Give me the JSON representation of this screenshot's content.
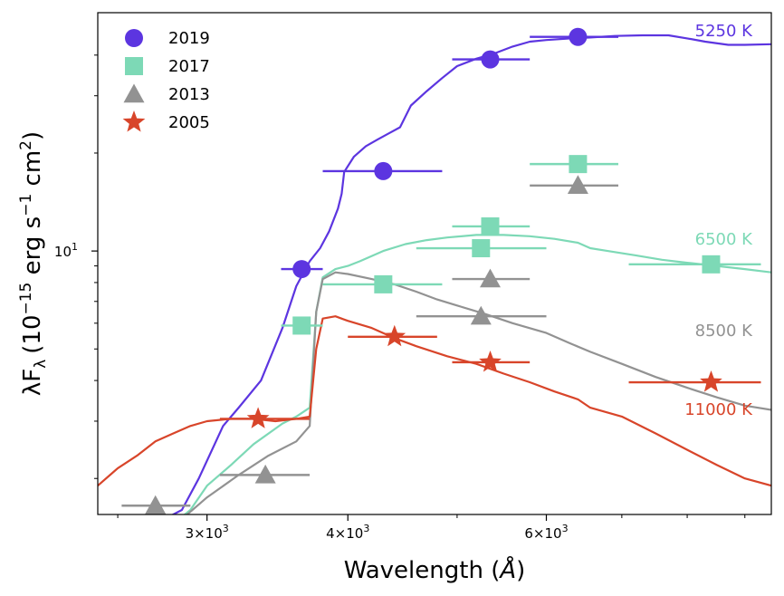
{
  "chart_data": {
    "type": "scatter",
    "xlabel_text": "Wavelength (",
    "xlabel_unit": "Å",
    "xlabel_close": ")",
    "ylabel_main": "λF",
    "ylabel_sub": "λ",
    "ylabel_units": "(10",
    "ylabel_exp1": "−15",
    "ylabel_mid": " erg s",
    "ylabel_exp2": "−1",
    "ylabel_end": " cm",
    "ylabel_exp3": "2",
    "ylabel_close": ")",
    "x_scale": "log",
    "y_scale": "log",
    "xlim": [
      2400,
      9500
    ],
    "ylim": [
      1.55,
      54
    ],
    "x_ticks": [
      {
        "value": 3000,
        "label": "3×10",
        "exp": "3"
      },
      {
        "value": 4000,
        "label": "4×10",
        "exp": "3"
      },
      {
        "value": 6000,
        "label": "6×10",
        "exp": "3"
      }
    ],
    "x_minor_ticks": [
      2500,
      5000,
      7000,
      8000,
      9000
    ],
    "y_ticks": [
      {
        "value": 10,
        "label": "10",
        "exp": "1"
      }
    ],
    "y_minor_ticks": [
      2,
      3,
      4,
      5,
      6,
      7,
      8,
      9,
      20,
      30,
      40
    ],
    "legend": [
      {
        "label": "2019",
        "marker": "circle",
        "color": "#5c35e0"
      },
      {
        "label": "2017",
        "marker": "square",
        "color": "#7dd9b6"
      },
      {
        "label": "2013",
        "marker": "triangle",
        "color": "#929292"
      },
      {
        "label": "2005",
        "marker": "star",
        "color": "#d8452a"
      }
    ],
    "photometry": [
      {
        "name": "2019",
        "marker": "circle",
        "color": "#5c35e0",
        "points": [
          {
            "x": 3640,
            "y": 8.8,
            "xerr": [
              3490,
              3800
            ]
          },
          {
            "x": 4300,
            "y": 17.6,
            "xerr": [
              3800,
              4850
            ]
          },
          {
            "x": 5350,
            "y": 38.8,
            "xerr": [
              4950,
              5800
            ]
          },
          {
            "x": 6400,
            "y": 45.5,
            "xerr": [
              5800,
              6950
            ]
          }
        ]
      },
      {
        "name": "2017",
        "marker": "square",
        "color": "#7dd9b6",
        "points": [
          {
            "x": 3640,
            "y": 5.9,
            "xerr": [
              3490,
              3800
            ]
          },
          {
            "x": 4300,
            "y": 7.9,
            "xerr": [
              3800,
              4850
            ]
          },
          {
            "x": 5250,
            "y": 10.2,
            "xerr": [
              4600,
              6000
            ]
          },
          {
            "x": 5350,
            "y": 11.9,
            "xerr": [
              4950,
              5800
            ]
          },
          {
            "x": 6400,
            "y": 18.5,
            "xerr": [
              5800,
              6950
            ]
          },
          {
            "x": 8400,
            "y": 9.1,
            "xerr": [
              7100,
              9300
            ]
          }
        ]
      },
      {
        "name": "2013",
        "marker": "triangle",
        "color": "#929292",
        "points": [
          {
            "x": 2700,
            "y": 1.65,
            "xerr": [
              2520,
              2900
            ]
          },
          {
            "x": 3380,
            "y": 2.05,
            "xerr": [
              3080,
              3700
            ]
          },
          {
            "x": 5350,
            "y": 8.2,
            "xerr": [
              4950,
              5800
            ]
          },
          {
            "x": 5250,
            "y": 6.3,
            "xerr": [
              4600,
              6000
            ]
          },
          {
            "x": 6400,
            "y": 15.9,
            "xerr": [
              5800,
              6950
            ]
          }
        ]
      },
      {
        "name": "2005",
        "marker": "star",
        "color": "#d8452a",
        "points": [
          {
            "x": 3330,
            "y": 3.05,
            "xerr": [
              3080,
              3700
            ]
          },
          {
            "x": 4400,
            "y": 5.45,
            "xerr": [
              4000,
              4800
            ]
          },
          {
            "x": 5350,
            "y": 4.55,
            "xerr": [
              4950,
              5800
            ]
          },
          {
            "x": 8400,
            "y": 3.95,
            "xerr": [
              7100,
              9300
            ]
          }
        ]
      }
    ],
    "spectra": [
      {
        "label": "5250 K",
        "color": "#5c35e0",
        "points": [
          [
            2750,
            1.5
          ],
          [
            2850,
            1.6
          ],
          [
            2950,
            2.0
          ],
          [
            3100,
            2.9
          ],
          [
            3200,
            3.3
          ],
          [
            3350,
            4.0
          ],
          [
            3500,
            5.8
          ],
          [
            3600,
            7.8
          ],
          [
            3700,
            9.3
          ],
          [
            3780,
            10.2
          ],
          [
            3850,
            11.5
          ],
          [
            3920,
            13.5
          ],
          [
            3950,
            15.0
          ],
          [
            3970,
            17.5
          ],
          [
            4050,
            19.5
          ],
          [
            4150,
            21.0
          ],
          [
            4250,
            22.0
          ],
          [
            4350,
            23.0
          ],
          [
            4450,
            24.0
          ],
          [
            4550,
            28.0
          ],
          [
            4700,
            31.0
          ],
          [
            4850,
            34.0
          ],
          [
            5000,
            37.0
          ],
          [
            5200,
            39.0
          ],
          [
            5400,
            40.5
          ],
          [
            5600,
            42.5
          ],
          [
            5800,
            44.0
          ],
          [
            6000,
            44.5
          ],
          [
            6300,
            45.0
          ],
          [
            6563,
            45.3
          ],
          [
            6900,
            45.8
          ],
          [
            7300,
            46.0
          ],
          [
            7700,
            46.0
          ],
          [
            8000,
            45.0
          ],
          [
            8300,
            44.0
          ],
          [
            8700,
            43.0
          ],
          [
            9000,
            43.0
          ],
          [
            9500,
            43.2
          ]
        ]
      },
      {
        "label": "6500 K",
        "color": "#7dd9b6",
        "points": [
          [
            2800,
            1.45
          ],
          [
            2900,
            1.6
          ],
          [
            3000,
            1.9
          ],
          [
            3150,
            2.2
          ],
          [
            3300,
            2.55
          ],
          [
            3500,
            2.95
          ],
          [
            3600,
            3.1
          ],
          [
            3700,
            3.3
          ],
          [
            3750,
            6.5
          ],
          [
            3800,
            8.3
          ],
          [
            3900,
            8.8
          ],
          [
            4000,
            9.0
          ],
          [
            4100,
            9.3
          ],
          [
            4300,
            10.0
          ],
          [
            4500,
            10.5
          ],
          [
            4700,
            10.8
          ],
          [
            4900,
            11.0
          ],
          [
            5200,
            11.2
          ],
          [
            5500,
            11.2
          ],
          [
            5800,
            11.1
          ],
          [
            6100,
            10.9
          ],
          [
            6400,
            10.6
          ],
          [
            6563,
            10.2
          ],
          [
            6800,
            10.0
          ],
          [
            7200,
            9.7
          ],
          [
            7600,
            9.4
          ],
          [
            8000,
            9.2
          ],
          [
            8500,
            9.0
          ],
          [
            9000,
            8.8
          ],
          [
            9500,
            8.6
          ]
        ]
      },
      {
        "label": "8500 K",
        "color": "#929292",
        "points": [
          [
            2700,
            1.4
          ],
          [
            2850,
            1.5
          ],
          [
            3000,
            1.75
          ],
          [
            3200,
            2.05
          ],
          [
            3400,
            2.35
          ],
          [
            3600,
            2.6
          ],
          [
            3700,
            2.9
          ],
          [
            3750,
            6.5
          ],
          [
            3800,
            8.2
          ],
          [
            3900,
            8.6
          ],
          [
            4000,
            8.5
          ],
          [
            4200,
            8.2
          ],
          [
            4400,
            7.9
          ],
          [
            4600,
            7.5
          ],
          [
            4800,
            7.1
          ],
          [
            5000,
            6.8
          ],
          [
            5300,
            6.4
          ],
          [
            5600,
            6.0
          ],
          [
            6000,
            5.6
          ],
          [
            6300,
            5.2
          ],
          [
            6563,
            4.9
          ],
          [
            7000,
            4.5
          ],
          [
            7500,
            4.1
          ],
          [
            8000,
            3.8
          ],
          [
            8500,
            3.55
          ],
          [
            9000,
            3.35
          ],
          [
            9500,
            3.25
          ]
        ]
      },
      {
        "label": "11000 K",
        "color": "#d8452a",
        "points": [
          [
            2400,
            1.9
          ],
          [
            2500,
            2.15
          ],
          [
            2600,
            2.35
          ],
          [
            2700,
            2.6
          ],
          [
            2800,
            2.75
          ],
          [
            2900,
            2.9
          ],
          [
            3000,
            3.0
          ],
          [
            3150,
            3.05
          ],
          [
            3300,
            3.05
          ],
          [
            3450,
            3.0
          ],
          [
            3600,
            3.05
          ],
          [
            3700,
            3.1
          ],
          [
            3750,
            5.0
          ],
          [
            3800,
            6.2
          ],
          [
            3900,
            6.3
          ],
          [
            4000,
            6.1
          ],
          [
            4200,
            5.8
          ],
          [
            4400,
            5.4
          ],
          [
            4600,
            5.1
          ],
          [
            4900,
            4.75
          ],
          [
            5200,
            4.5
          ],
          [
            5500,
            4.2
          ],
          [
            5800,
            3.95
          ],
          [
            6100,
            3.7
          ],
          [
            6400,
            3.5
          ],
          [
            6563,
            3.3
          ],
          [
            7000,
            3.1
          ],
          [
            7500,
            2.75
          ],
          [
            8000,
            2.45
          ],
          [
            8500,
            2.2
          ],
          [
            9000,
            2.0
          ],
          [
            9500,
            1.9
          ]
        ]
      }
    ],
    "temperature_labels": [
      {
        "text": "5250 K",
        "color": "#5c35e0"
      },
      {
        "text": "6500 K",
        "color": "#7dd9b6"
      },
      {
        "text": "8500 K",
        "color": "#929292"
      },
      {
        "text": "11000 K",
        "color": "#d8452a"
      }
    ]
  }
}
